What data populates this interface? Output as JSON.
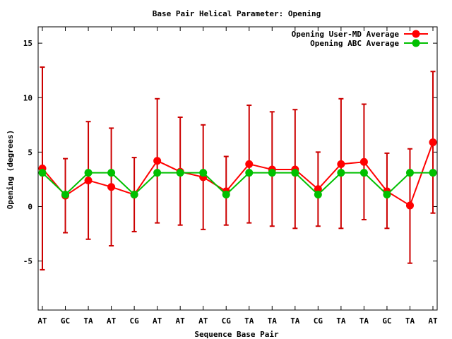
{
  "chart_data": {
    "type": "line",
    "title": "Base Pair Helical Parameter: Opening",
    "xlabel": "Sequence Base Pair",
    "ylabel": "Opening (degrees)",
    "categories": [
      "AT",
      "GC",
      "TA",
      "AT",
      "CG",
      "AT",
      "AT",
      "AT",
      "CG",
      "TA",
      "TA",
      "TA",
      "CG",
      "TA",
      "TA",
      "GC",
      "TA",
      "AT"
    ],
    "ylim": [
      -9.5,
      16.5
    ],
    "yticks": [
      15,
      10,
      5,
      0,
      -5
    ],
    "ytick_labels": [
      "15",
      "10",
      "5",
      "0",
      "-5"
    ],
    "grid": false,
    "legend_position": "top-right",
    "series": [
      {
        "name": "Opening User-MD Average",
        "color": "#ff0000",
        "error_color": "#cc0000",
        "values": [
          3.5,
          1.0,
          2.4,
          1.8,
          1.1,
          4.2,
          3.2,
          2.7,
          1.4,
          3.9,
          3.4,
          3.4,
          1.6,
          3.9,
          4.1,
          1.4,
          0.1,
          5.9
        ],
        "error_low": [
          -5.8,
          -2.4,
          -3.0,
          -3.6,
          -2.3,
          -1.5,
          -1.7,
          -2.1,
          -1.7,
          -1.5,
          -1.8,
          -2.0,
          -1.8,
          -2.0,
          -1.2,
          -2.0,
          -5.2,
          -0.6
        ],
        "error_high": [
          12.8,
          4.4,
          7.8,
          7.2,
          4.5,
          9.9,
          8.2,
          7.5,
          4.6,
          9.3,
          8.7,
          8.9,
          5.0,
          9.9,
          9.4,
          4.9,
          5.3,
          12.4
        ]
      },
      {
        "name": "Opening ABC Average",
        "color": "#00c000",
        "values": [
          3.1,
          1.1,
          3.1,
          3.1,
          1.1,
          3.1,
          3.1,
          3.1,
          1.1,
          3.1,
          3.1,
          3.1,
          1.1,
          3.1,
          3.1,
          1.1,
          3.1,
          3.1
        ]
      }
    ]
  }
}
